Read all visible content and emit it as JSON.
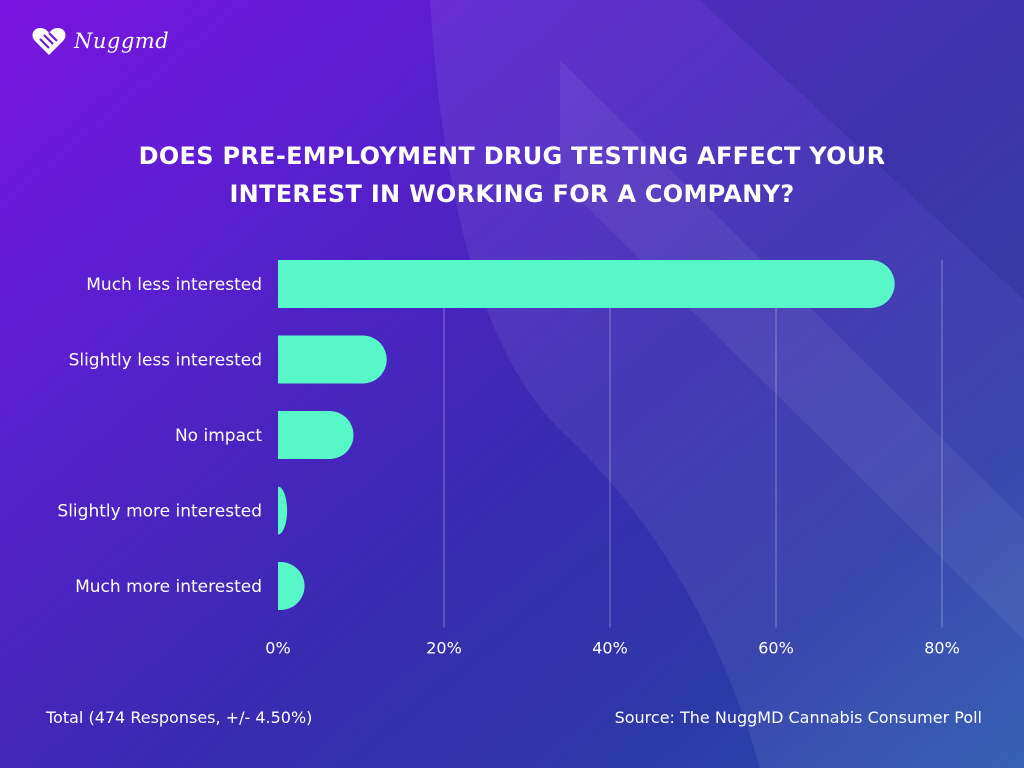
{
  "brand": {
    "logo_text": "Nuggmd",
    "logo_icon": "heart-leaf-icon"
  },
  "colors": {
    "bar": "#57f7c8",
    "text": "#ffffff",
    "grid": "rgba(255,255,255,0.35)"
  },
  "chart_data": {
    "type": "bar",
    "orientation": "horizontal",
    "title_lines": [
      "DOES PRE-EMPLOYMENT DRUG TESTING AFFECT YOUR",
      "INTEREST IN WORKING FOR A COMPANY?"
    ],
    "categories": [
      "Much less interested",
      "Slightly less interested",
      "No impact",
      "Slightly more interested",
      "Much more interested"
    ],
    "values": [
      74.3,
      13.1,
      9.1,
      1.1,
      3.2
    ],
    "xlim": [
      0,
      80
    ],
    "xticks": [
      "0%",
      "20%",
      "40%",
      "60%",
      "80%"
    ],
    "grid": "vertical"
  },
  "footer": {
    "total": "Total (474 Responses, +/- 4.50%)",
    "source": "Source: The NuggMD Cannabis Consumer Poll"
  }
}
